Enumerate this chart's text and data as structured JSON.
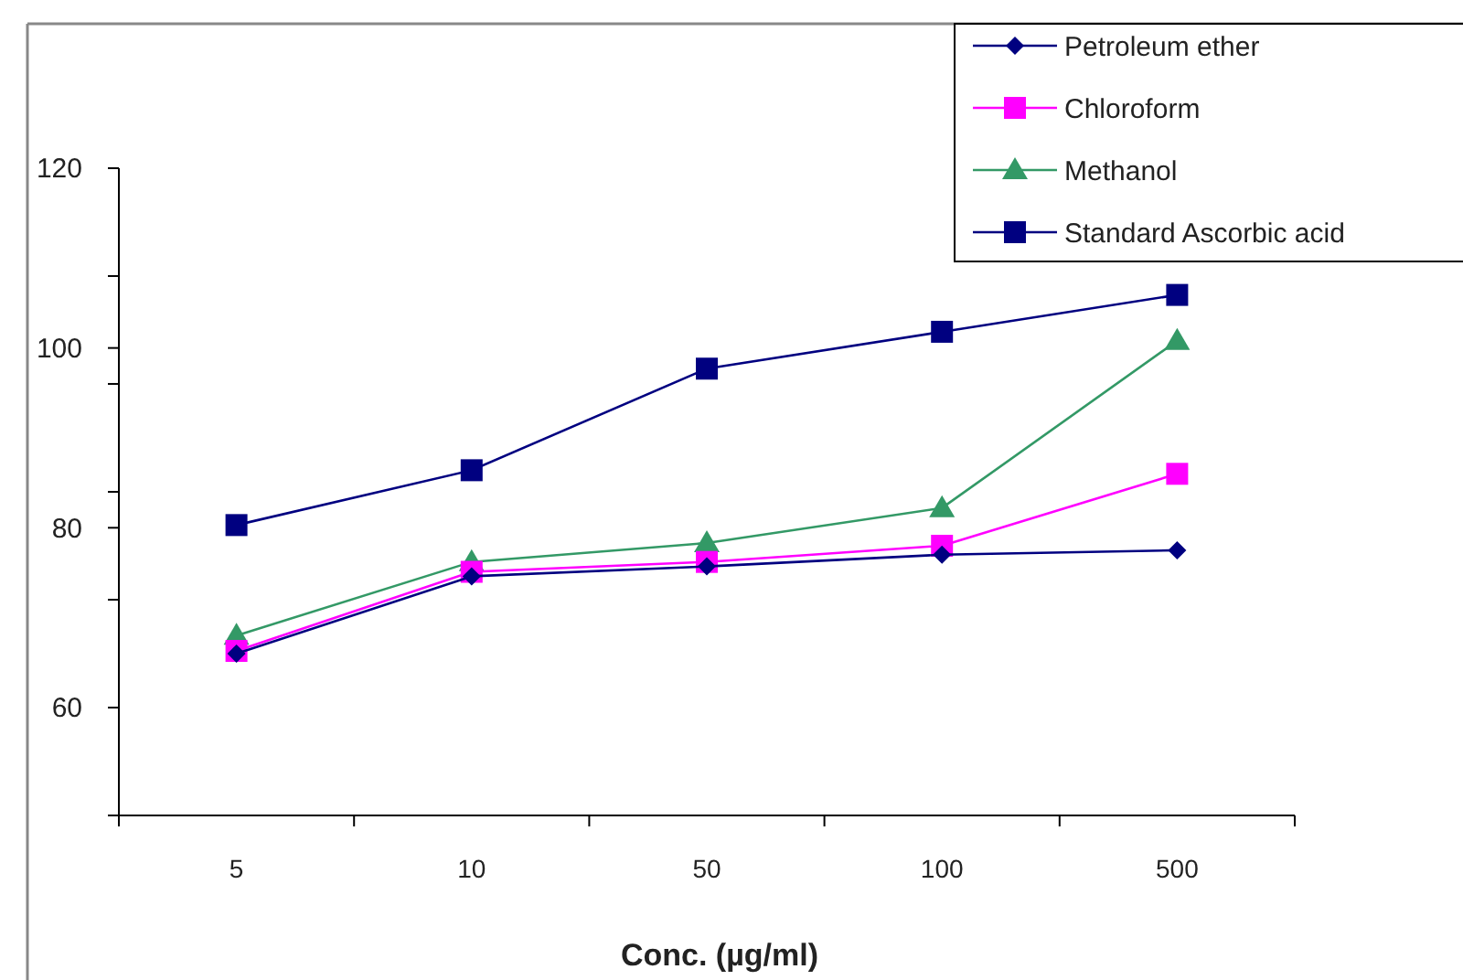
{
  "chart_data": {
    "type": "line",
    "xlabel": "Conc. (µg/ml)",
    "categories": [
      "5",
      "10",
      "50",
      "100",
      "500"
    ],
    "ylim": [
      48,
      120
    ],
    "yticks": [
      {
        "value": 48,
        "label": null
      },
      60,
      {
        "value": 72,
        "label": null
      },
      80,
      {
        "value": 84,
        "label": null
      },
      {
        "value": 96,
        "label": null
      },
      100,
      {
        "value": 108,
        "label": null
      },
      120
    ],
    "series": [
      {
        "name": "Petroleum ether",
        "color": "#000080",
        "marker": "diamond",
        "values": [
          66.0,
          74.6,
          75.7,
          77.0,
          77.5
        ]
      },
      {
        "name": "Chloroform",
        "color": "#ff00ff",
        "marker": "square",
        "values": [
          66.3,
          75.1,
          76.2,
          78.0,
          86.0
        ]
      },
      {
        "name": "Methanol",
        "color": "#339966",
        "marker": "triangle",
        "values": [
          68.0,
          76.2,
          78.3,
          82.2,
          100.8
        ]
      },
      {
        "name": "Standard  Ascorbic acid",
        "color": "#000080",
        "marker": "square",
        "values": [
          80.3,
          86.4,
          97.7,
          101.8,
          105.9
        ]
      }
    ],
    "grid": false,
    "legend": "top right"
  }
}
